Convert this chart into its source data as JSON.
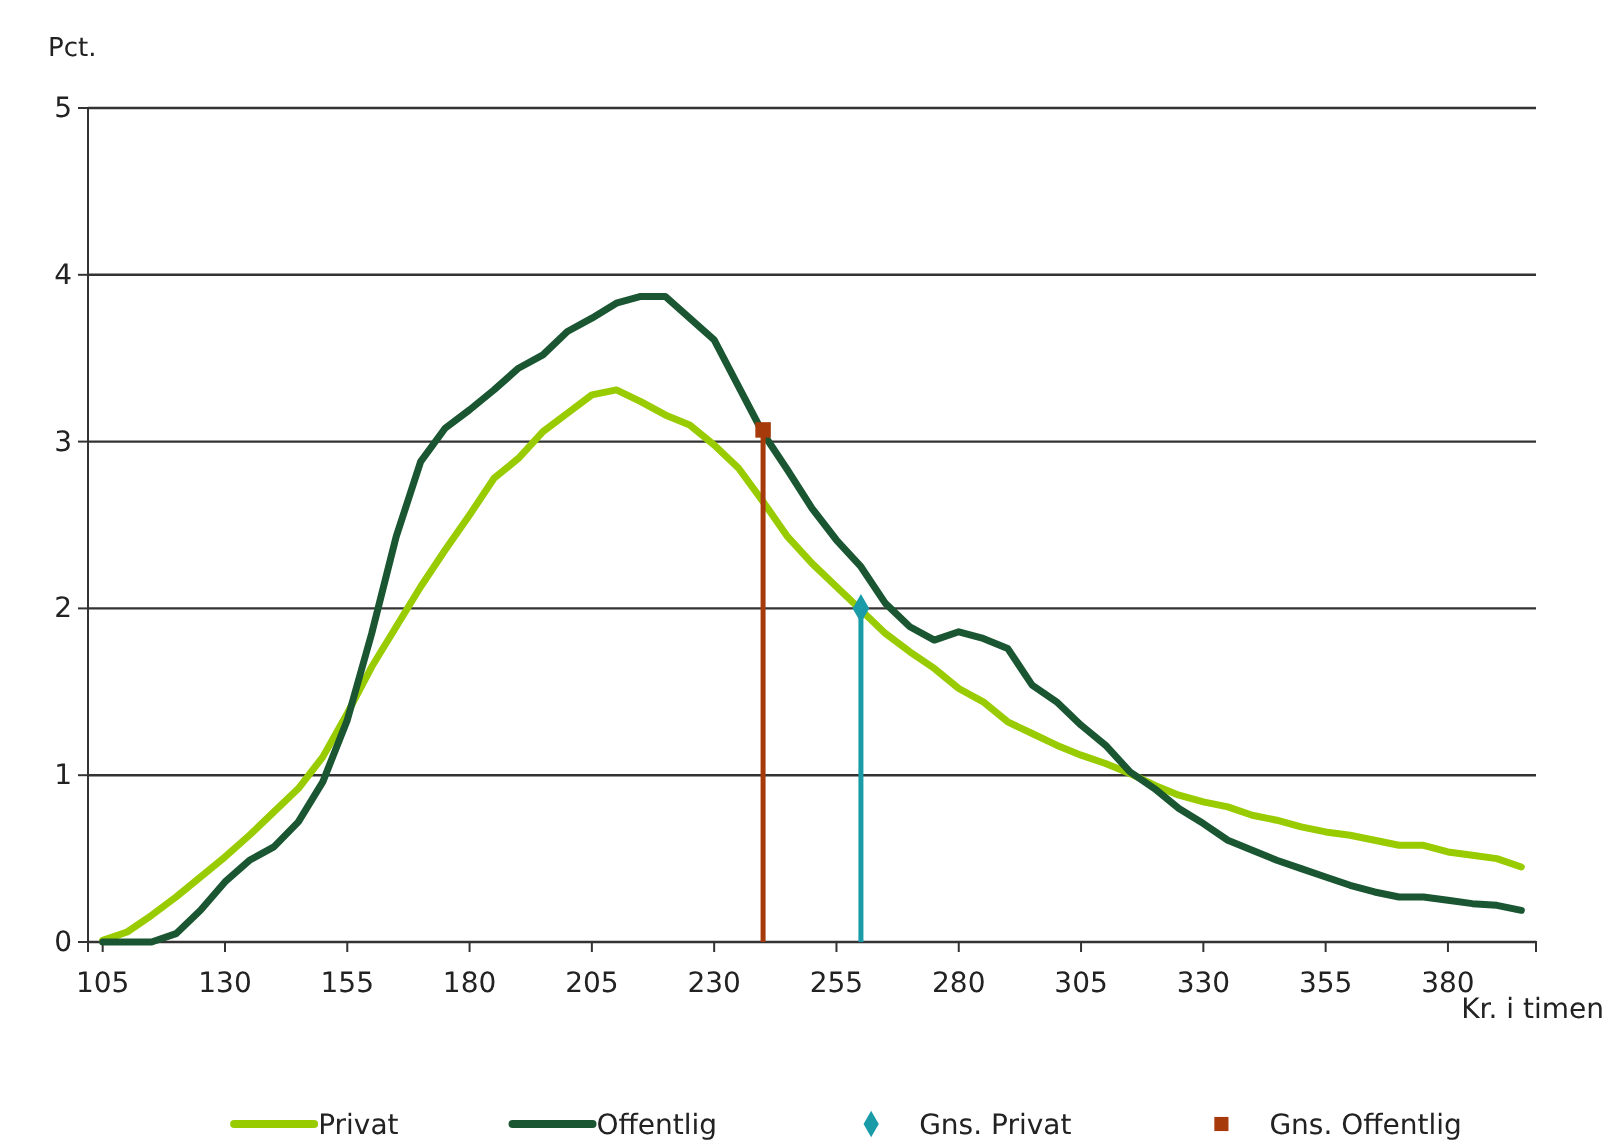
{
  "chart_data": {
    "type": "line",
    "ylabel": "Pct.",
    "xlabel": "Kr. i timen",
    "xlim": [
      102,
      398
    ],
    "xticks": [
      105,
      130,
      155,
      180,
      205,
      230,
      255,
      280,
      305,
      330,
      355,
      380
    ],
    "ylim": [
      0,
      5
    ],
    "yticks": [
      0,
      1,
      2,
      3,
      4,
      5
    ],
    "grid": "y",
    "legend": "bottom",
    "line_style": "solid",
    "series": [
      {
        "name": "Privat",
        "color": "#99cc00",
        "marker": "none",
        "x": [
          105,
          110,
          115,
          120,
          125,
          130,
          135,
          140,
          145,
          150,
          155,
          160,
          165,
          170,
          175,
          180,
          185,
          190,
          195,
          200,
          205,
          210,
          215,
          220,
          225,
          230,
          235,
          240,
          245,
          250,
          255,
          260,
          265,
          270,
          275,
          280,
          285,
          290,
          295,
          300,
          305,
          310,
          315,
          320,
          325,
          330,
          335,
          340,
          345,
          350,
          355,
          360,
          365,
          370,
          375,
          380,
          385,
          390,
          395
        ],
        "values": [
          0.01,
          0.06,
          0.16,
          0.27,
          0.39,
          0.51,
          0.64,
          0.78,
          0.92,
          1.11,
          1.37,
          1.65,
          1.89,
          2.13,
          2.35,
          2.56,
          2.78,
          2.9,
          3.06,
          3.17,
          3.28,
          3.31,
          3.24,
          3.16,
          3.1,
          2.98,
          2.84,
          2.64,
          2.43,
          2.27,
          2.13,
          1.99,
          1.85,
          1.74,
          1.64,
          1.52,
          1.44,
          1.32,
          1.25,
          1.18,
          1.12,
          1.07,
          1.01,
          0.94,
          0.88,
          0.84,
          0.81,
          0.76,
          0.73,
          0.69,
          0.66,
          0.64,
          0.61,
          0.58,
          0.58,
          0.54,
          0.52,
          0.5,
          0.45
        ]
      },
      {
        "name": "Offentlig",
        "color": "#1a5632",
        "marker": "none",
        "x": [
          105,
          110,
          115,
          120,
          125,
          130,
          135,
          140,
          145,
          150,
          155,
          160,
          165,
          170,
          175,
          180,
          185,
          190,
          195,
          200,
          205,
          210,
          215,
          220,
          225,
          230,
          235,
          240,
          245,
          250,
          255,
          260,
          265,
          270,
          275,
          280,
          285,
          290,
          295,
          300,
          305,
          310,
          315,
          320,
          325,
          330,
          335,
          340,
          345,
          350,
          355,
          360,
          365,
          370,
          375,
          380,
          385,
          390,
          395
        ],
        "values": [
          0,
          0,
          0,
          0.05,
          0.19,
          0.36,
          0.49,
          0.57,
          0.72,
          0.96,
          1.33,
          1.85,
          2.43,
          2.88,
          3.08,
          3.19,
          3.31,
          3.44,
          3.52,
          3.66,
          3.74,
          3.83,
          3.87,
          3.87,
          3.74,
          3.61,
          3.33,
          3.05,
          2.83,
          2.6,
          2.41,
          2.25,
          2.03,
          1.89,
          1.81,
          1.86,
          1.82,
          1.76,
          1.54,
          1.44,
          1.3,
          1.18,
          1.02,
          0.92,
          0.8,
          0.71,
          0.61,
          0.55,
          0.49,
          0.44,
          0.39,
          0.34,
          0.3,
          0.27,
          0.27,
          0.25,
          0.23,
          0.22,
          0.19
        ]
      },
      {
        "name": "Gns. Privat",
        "color": "#1a9ba8",
        "type": "lollipop",
        "marker": "diamond",
        "x": [
          260
        ],
        "values": [
          2.0
        ]
      },
      {
        "name": "Gns. Offentlig",
        "color": "#a63a0a",
        "type": "lollipop",
        "marker": "square",
        "x": [
          240
        ],
        "values": [
          3.07
        ]
      }
    ]
  }
}
